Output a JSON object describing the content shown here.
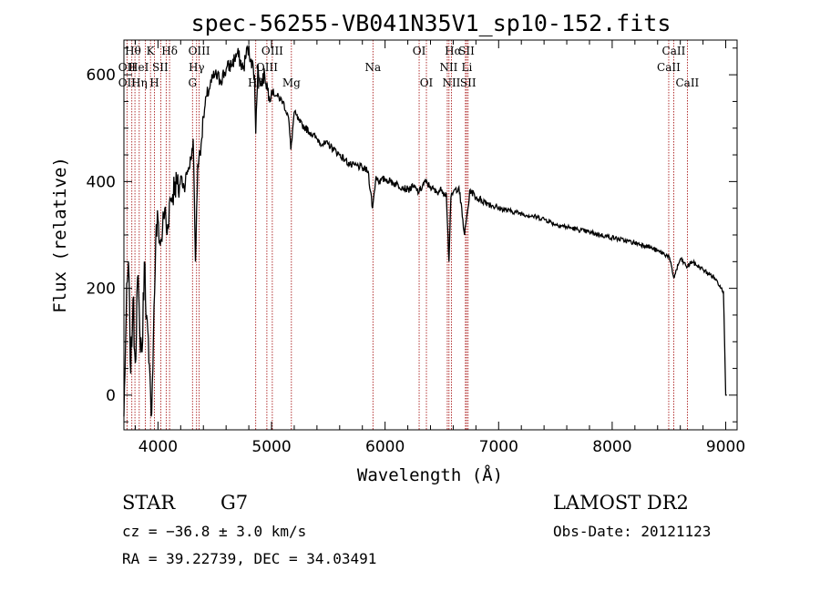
{
  "chart_data": {
    "type": "line",
    "title": "spec-56255-VB041N35V1_sp10-152.fits",
    "xlabel": "Wavelength (Å)",
    "ylabel": "Flux (relative)",
    "xlim": [
      3700,
      9100
    ],
    "ylim": [
      -65,
      665
    ],
    "x_ticks": [
      4000,
      5000,
      6000,
      7000,
      8000,
      9000
    ],
    "y_ticks": [
      0,
      200,
      400,
      600
    ],
    "x_tick_labels": [
      "4000",
      "5000",
      "6000",
      "7000",
      "8000",
      "9000"
    ],
    "y_tick_labels": [
      "0",
      "200",
      "400",
      "600"
    ],
    "grid": false,
    "line_color": "#000000",
    "marker_color": "#a00000",
    "series": [
      {
        "x": [
          3700,
          3720,
          3740,
          3760,
          3780,
          3800,
          3820,
          3840,
          3860,
          3880,
          3900,
          3920,
          3940,
          3960,
          3980,
          4000,
          4020,
          4040,
          4060,
          4080,
          4100,
          4120,
          4150,
          4180,
          4200,
          4230,
          4260,
          4290,
          4310,
          4330,
          4350,
          4380,
          4400,
          4430,
          4460,
          4500,
          4550,
          4600,
          4650,
          4700,
          4750,
          4790,
          4820,
          4850,
          4861,
          4880,
          4900,
          4940,
          4980,
          5000,
          5050,
          5100,
          5150,
          5170,
          5200,
          5250,
          5300,
          5350,
          5400,
          5450,
          5500,
          5550,
          5600,
          5650,
          5700,
          5750,
          5800,
          5850,
          5890,
          5920,
          5950,
          6000,
          6050,
          6100,
          6150,
          6200,
          6250,
          6300,
          6350,
          6400,
          6450,
          6500,
          6540,
          6563,
          6580,
          6600,
          6650,
          6700,
          6750,
          6800,
          6850,
          6900,
          6950,
          7000,
          7100,
          7200,
          7300,
          7400,
          7500,
          7600,
          7700,
          7800,
          7900,
          8000,
          8100,
          8200,
          8300,
          8400,
          8500,
          8542,
          8600,
          8662,
          8700,
          8800,
          8900,
          8950,
          8980,
          9000,
          9010
        ],
        "y": [
          -40,
          150,
          250,
          40,
          180,
          60,
          220,
          120,
          80,
          250,
          150,
          60,
          -40,
          110,
          290,
          330,
          280,
          310,
          350,
          300,
          360,
          370,
          400,
          380,
          410,
          390,
          420,
          440,
          480,
          250,
          430,
          470,
          520,
          560,
          580,
          600,
          590,
          610,
          620,
          640,
          610,
          650,
          630,
          600,
          490,
          620,
          580,
          600,
          560,
          570,
          560,
          550,
          520,
          460,
          530,
          510,
          500,
          490,
          480,
          470,
          470,
          460,
          450,
          440,
          430,
          430,
          425,
          420,
          350,
          410,
          400,
          405,
          400,
          395,
          390,
          385,
          390,
          380,
          400,
          390,
          380,
          385,
          375,
          250,
          370,
          380,
          390,
          300,
          385,
          370,
          365,
          360,
          355,
          350,
          345,
          340,
          335,
          330,
          320,
          315,
          310,
          305,
          300,
          295,
          290,
          285,
          280,
          270,
          260,
          220,
          255,
          240,
          250,
          235,
          220,
          205,
          195,
          0,
          0
        ]
      }
    ],
    "annotations": {
      "top_row": [
        "Hθ",
        "K",
        "Hδ",
        "OIII",
        "OIII",
        "OI",
        "Hα",
        "SII",
        "CaII"
      ],
      "mid_row": [
        "OII",
        "HeI",
        "SII",
        "Hγ",
        "OIII",
        "Na",
        "NII",
        "Li",
        "CaII"
      ],
      "bot_row": [
        "OII",
        "Hη",
        "H",
        "G",
        "Hβ",
        "Mg",
        "OI",
        "NII",
        "SII",
        "CaII"
      ],
      "line_wavelengths": [
        3727,
        3770,
        3797,
        3835,
        3889,
        3934,
        3969,
        4026,
        4072,
        4102,
        4304,
        4340,
        4363,
        4861,
        4959,
        5007,
        5175,
        5893,
        6300,
        6364,
        6548,
        6563,
        6584,
        6708,
        6717,
        6731,
        8498,
        8542,
        8662
      ]
    },
    "info": {
      "class": "STAR",
      "subclass": "G7",
      "survey": "LAMOST DR2",
      "cz": "cz = −36.8 ± 3.0 km/s",
      "obs_date": "Obs-Date: 20121123",
      "coords": "RA =  39.22739, DEC =  34.03491"
    }
  }
}
